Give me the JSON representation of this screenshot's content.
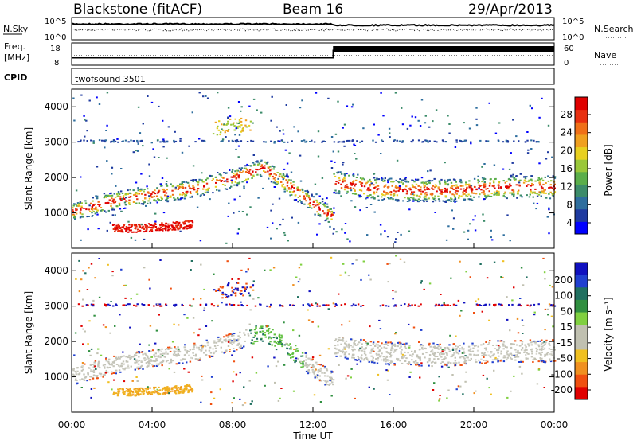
{
  "header": {
    "station": "Blackstone (fitACF)",
    "beam": "Beam 16",
    "date": "29/Apr/2013"
  },
  "strip": {
    "nsky_label": "N.Sky",
    "nsearch_label": "N.Search",
    "noise_ticks": [
      "10^5",
      "10^0"
    ],
    "freq_label_line1": "Freq.",
    "freq_label_line2": "[MHz]",
    "freq_ticks": [
      "18",
      "8"
    ],
    "nave_label": "Nave",
    "nave_ticks": [
      "60",
      "0"
    ],
    "cpid_label": "CPID",
    "cpid_value": "twofsound 3501"
  },
  "axes": {
    "ylabel": "Slant Range [km]",
    "xlabel": "Time UT",
    "y_ticks": [
      "1000",
      "2000",
      "3000",
      "4000"
    ],
    "x_ticks": [
      "00:00",
      "04:00",
      "08:00",
      "12:00",
      "16:00",
      "20:00",
      "00:00"
    ]
  },
  "power_colorbar": {
    "label": "Power [dB]",
    "ticks": [
      "4",
      "8",
      "12",
      "16",
      "20",
      "24",
      "28"
    ],
    "colors": [
      "#0000ff",
      "#1e3aa0",
      "#2e6e9e",
      "#3c8c6a",
      "#5aae4a",
      "#9ac83a",
      "#e8d020",
      "#f0a020",
      "#f07018",
      "#e83010",
      "#e00000"
    ]
  },
  "velocity_colorbar": {
    "label": "Velocity [m s⁻¹]",
    "ticks": [
      "200",
      "100",
      "50",
      "15",
      "-15",
      "-50",
      "-100",
      "-200"
    ],
    "colors": [
      "#1010c0",
      "#2040d0",
      "#207060",
      "#309040",
      "#80d040",
      "#c0c0b0",
      "#c0c0b0",
      "#f0c020",
      "#f09020",
      "#f05010",
      "#e00000"
    ]
  },
  "chart_data": {
    "type": "heatmap",
    "title": "Blackstone (fitACF) Beam 16",
    "date": "29/Apr/2013",
    "xlabel": "Time UT",
    "ylabel": "Slant Range [km]",
    "xlim": [
      "00:00",
      "24:00"
    ],
    "ylim": [
      0,
      4500
    ],
    "frequency_mhz": [
      {
        "from": "00:00",
        "to": "13:00",
        "value": 11
      },
      {
        "from": "13:00",
        "to": "24:00",
        "value": 15
      }
    ],
    "echo_bands_km": [
      {
        "name": "main",
        "points": [
          [
            "00:00",
            1050
          ],
          [
            "02:00",
            1350
          ],
          [
            "04:00",
            1550
          ],
          [
            "06:00",
            1700
          ],
          [
            "08:00",
            2000
          ],
          [
            "09:30",
            2300
          ],
          [
            "11:00",
            1700
          ],
          [
            "12:00",
            1250
          ],
          [
            "13:00",
            900
          ]
        ]
      },
      {
        "name": "near",
        "points": [
          [
            "02:00",
            600
          ],
          [
            "03:00",
            580
          ],
          [
            "05:00",
            650
          ],
          [
            "06:00",
            700
          ]
        ]
      },
      {
        "name": "afternoon",
        "points": [
          [
            "13:00",
            1900
          ],
          [
            "15:00",
            1700
          ],
          [
            "17:00",
            1650
          ],
          [
            "19:00",
            1650
          ],
          [
            "21:00",
            1750
          ],
          [
            "24:00",
            1750
          ]
        ]
      },
      {
        "name": "far",
        "points": [
          [
            "07:00",
            3400
          ],
          [
            "08:00",
            3500
          ],
          [
            "09:00",
            3500
          ]
        ]
      }
    ]
  }
}
